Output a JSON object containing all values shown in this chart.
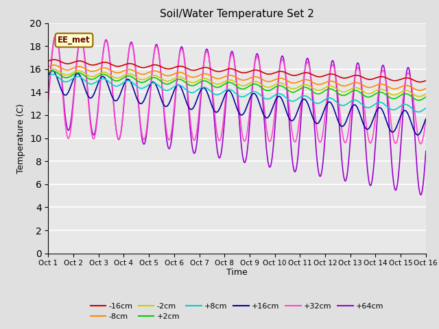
{
  "title": "Soil/Water Temperature Set 2",
  "xlabel": "Time",
  "ylabel": "Temperature (C)",
  "ylim": [
    0,
    20
  ],
  "yticks": [
    0,
    2,
    4,
    6,
    8,
    10,
    12,
    14,
    16,
    18,
    20
  ],
  "xlim_days": 15,
  "xtick_labels": [
    "Oct 1",
    "Oct 2",
    "Oct 3",
    "Oct 4",
    "Oct 5",
    "Oct 6",
    "Oct 7",
    "Oct 8",
    "Oct 9",
    "Oct 10",
    "Oct 11",
    "Oct 12",
    "Oct 13",
    "Oct 14",
    "Oct 15",
    "Oct 16"
  ],
  "annotation_text": "EE_met",
  "annotation_box_color": "#ffffcc",
  "annotation_border_color": "#996600",
  "background_color": "#e0e0e0",
  "plot_bg_color": "#e8e8e8",
  "series_colors": {
    "-16cm": "#cc0000",
    "-8cm": "#ff8800",
    "-2cm": "#cccc00",
    "+2cm": "#00cc00",
    "+8cm": "#00cccc",
    "+16cm": "#000099",
    "+32cm": "#ff44cc",
    "+64cm": "#9900cc"
  },
  "linewidth": 1.2,
  "n_points": 1440,
  "days": 15
}
